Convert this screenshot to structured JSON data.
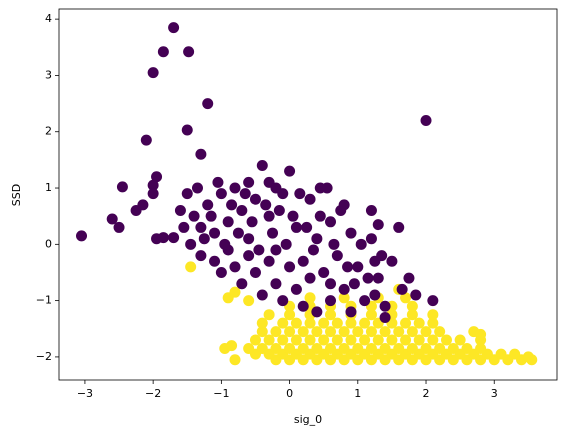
{
  "chart_data": {
    "type": "scatter",
    "x_label": "sig_0",
    "y_label": "SSD",
    "xlim": [
      -3.38,
      3.92
    ],
    "ylim": [
      -2.41,
      4.18
    ],
    "xticks": [
      {
        "value": -3,
        "label": "−3"
      },
      {
        "value": -2,
        "label": "−2"
      },
      {
        "value": -1,
        "label": "−1"
      },
      0,
      1,
      2,
      3
    ],
    "yticks": [
      {
        "value": -2,
        "label": "−2"
      },
      {
        "value": -1,
        "label": "−1"
      },
      0,
      1,
      2,
      3,
      4
    ],
    "series": [
      {
        "color": "#fde725",
        "x": [
          -0.2,
          0,
          0.2,
          0.4,
          0.6,
          0.8,
          1.0,
          1.2,
          1.4,
          1.6,
          1.8,
          2.0,
          2.2,
          2.4,
          2.6,
          2.8,
          3.0,
          3.2,
          3.4,
          3.55,
          -0.5,
          -0.3,
          -0.1,
          0.1,
          0.3,
          0.5,
          0.7,
          0.9,
          1.1,
          1.3,
          1.5,
          1.7,
          1.9,
          2.1,
          2.3,
          2.5,
          2.7,
          2.9,
          3.1,
          3.3,
          -0.6,
          -0.4,
          -0.2,
          0,
          0.2,
          0.4,
          0.6,
          0.8,
          1.0,
          1.2,
          1.4,
          1.6,
          1.8,
          2.0,
          2.2,
          2.4,
          2.6,
          2.8,
          -0.5,
          -0.3,
          -0.1,
          0.1,
          0.3,
          0.5,
          0.7,
          0.9,
          1.1,
          1.3,
          1.5,
          1.7,
          1.9,
          2.1,
          2.3,
          2.5,
          2.8,
          -0.4,
          -0.2,
          0,
          0.2,
          0.4,
          0.6,
          0.8,
          1.0,
          1.2,
          1.4,
          1.6,
          1.8,
          2.0,
          2.2,
          2.7,
          -0.4,
          -0.1,
          0.1,
          0.3,
          0.5,
          0.7,
          0.9,
          1.1,
          1.3,
          1.5,
          1.7,
          1.9,
          2.1,
          -0.3,
          0,
          0.3,
          0.6,
          0.9,
          1.2,
          1.5,
          1.8,
          2.1,
          0,
          0.3,
          0.6,
          0.9,
          1.2,
          1.5,
          1.8,
          0.3,
          0.8,
          1.3,
          1.7,
          -1.45,
          -0.9,
          -0.8,
          -0.95,
          -0.85,
          -0.8,
          -0.6,
          1.6,
          2.8,
          3.5
        ],
        "values": [
          -2.05,
          -2.05,
          -2.05,
          -2.05,
          -2.05,
          -2.05,
          -2.05,
          -2.05,
          -2.05,
          -2.05,
          -2.05,
          -2.05,
          -2.05,
          -2.05,
          -2.05,
          -2.05,
          -2.05,
          -2.05,
          -2.05,
          -2.05,
          -1.95,
          -1.95,
          -1.95,
          -1.95,
          -1.95,
          -1.95,
          -1.95,
          -1.95,
          -1.95,
          -1.95,
          -1.95,
          -1.95,
          -1.95,
          -1.95,
          -1.95,
          -1.95,
          -1.95,
          -1.95,
          -1.95,
          -1.95,
          -1.85,
          -1.85,
          -1.85,
          -1.85,
          -1.85,
          -1.85,
          -1.85,
          -1.85,
          -1.85,
          -1.85,
          -1.85,
          -1.85,
          -1.85,
          -1.85,
          -1.85,
          -1.85,
          -1.85,
          -1.85,
          -1.7,
          -1.7,
          -1.7,
          -1.7,
          -1.7,
          -1.7,
          -1.7,
          -1.7,
          -1.7,
          -1.7,
          -1.7,
          -1.7,
          -1.7,
          -1.7,
          -1.7,
          -1.7,
          -1.7,
          -1.55,
          -1.55,
          -1.55,
          -1.55,
          -1.55,
          -1.55,
          -1.55,
          -1.55,
          -1.55,
          -1.55,
          -1.55,
          -1.55,
          -1.55,
          -1.55,
          -1.55,
          -1.4,
          -1.4,
          -1.4,
          -1.4,
          -1.4,
          -1.4,
          -1.4,
          -1.4,
          -1.4,
          -1.4,
          -1.4,
          -1.4,
          -1.4,
          -1.25,
          -1.25,
          -1.25,
          -1.25,
          -1.25,
          -1.25,
          -1.25,
          -1.25,
          -1.25,
          -1.1,
          -1.1,
          -1.1,
          -1.1,
          -1.1,
          -1.1,
          -1.1,
          -0.95,
          -0.95,
          -0.95,
          -0.95,
          -0.4,
          -0.95,
          -0.85,
          -1.85,
          -1.8,
          -2.05,
          -1.0,
          -0.8,
          -1.6,
          -2.0
        ]
      },
      {
        "color": "#440154",
        "x": [
          -1.7,
          -1.85,
          -1.48,
          -2.0,
          -1.2,
          2.0,
          -2.1,
          -1.5,
          -1.3,
          -3.05,
          -2.6,
          -2.5,
          -2.45,
          -2.25,
          -2.15,
          -2.0,
          -1.95,
          -2.0,
          -1.95,
          -1.85,
          -1.7,
          -1.5,
          -1.4,
          -1.3,
          -1.2,
          -1.1,
          -1.0,
          -0.9,
          -0.8,
          -0.7,
          -0.6,
          -0.5,
          -0.4,
          -0.3,
          -0.2,
          -0.1,
          0.0,
          0.1,
          0.2,
          0.3,
          0.4,
          0.5,
          0.6,
          0.7,
          0.8,
          0.9,
          1.0,
          1.1,
          1.2,
          1.3,
          1.4,
          1.5,
          1.6,
          1.2,
          0.55,
          -1.45,
          -1.3,
          -1.1,
          -1.0,
          -0.9,
          -0.8,
          -0.7,
          -0.6,
          -0.5,
          -0.4,
          -0.3,
          -0.2,
          -0.1,
          0.0,
          0.1,
          0.2,
          0.3,
          0.4,
          0.6,
          0.9,
          1.4,
          -1.6,
          -1.55,
          -1.35,
          -1.25,
          -1.15,
          -1.05,
          -0.95,
          -0.85,
          -0.75,
          -0.65,
          -0.55,
          -0.45,
          -0.35,
          -0.25,
          -0.15,
          -0.05,
          0.05,
          0.15,
          0.25,
          0.35,
          0.45,
          0.65,
          0.75,
          0.85,
          0.95,
          1.05,
          1.15,
          1.25,
          1.35,
          1.3,
          1.75,
          1.85,
          2.1,
          1.65,
          0.45,
          -0.3,
          -0.6,
          -0.2,
          0.8,
          1.25,
          0.6
        ],
        "values": [
          3.85,
          3.42,
          3.42,
          3.05,
          2.5,
          2.2,
          1.85,
          2.03,
          1.6,
          0.15,
          0.45,
          0.3,
          1.02,
          0.6,
          0.7,
          1.05,
          1.2,
          0.9,
          0.1,
          0.12,
          0.12,
          0.9,
          0.5,
          0.3,
          0.7,
          0.2,
          0.9,
          0.4,
          1.0,
          0.6,
          0.1,
          0.8,
          1.4,
          0.5,
          -0.1,
          0.9,
          1.3,
          0.3,
          -0.3,
          0.8,
          0.1,
          -0.5,
          0.4,
          -0.2,
          -0.8,
          0.2,
          -0.4,
          -1.0,
          0.1,
          -0.6,
          -1.1,
          -0.3,
          0.3,
          0.6,
          1.0,
          0.0,
          -0.2,
          -0.3,
          -0.5,
          -0.1,
          -0.4,
          -0.7,
          -0.2,
          -0.5,
          -0.9,
          -0.3,
          -0.7,
          -1.0,
          -0.4,
          -0.8,
          -1.1,
          -0.6,
          -1.2,
          -1.0,
          -1.2,
          -1.3,
          0.6,
          0.3,
          1.0,
          0.1,
          0.5,
          1.1,
          0.0,
          0.7,
          0.2,
          0.9,
          0.4,
          -0.1,
          0.7,
          0.2,
          0.6,
          0.0,
          0.5,
          0.9,
          0.3,
          -0.1,
          0.5,
          0.0,
          0.6,
          -0.4,
          -0.7,
          0.0,
          -0.6,
          -0.9,
          -0.2,
          0.35,
          -0.6,
          -0.9,
          -1.0,
          -0.8,
          1.0,
          1.1,
          1.1,
          1.0,
          0.7,
          -0.3,
          -0.7
        ]
      }
    ]
  }
}
